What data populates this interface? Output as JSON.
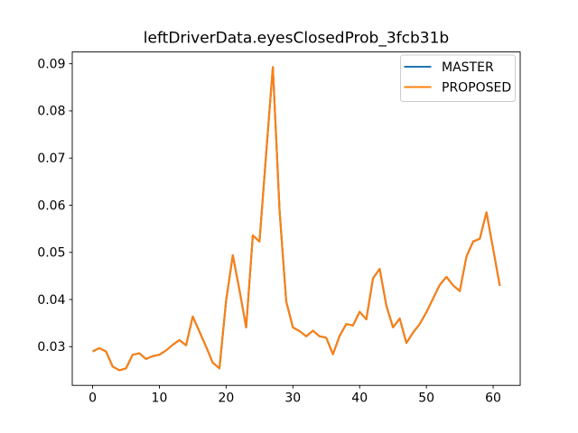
{
  "chart_data": {
    "type": "line",
    "title": "leftDriverData.eyesClosedProb_3fcb31b",
    "xlabel": "",
    "ylabel": "",
    "grid": false,
    "legend_position": "upper right",
    "xlim": [
      -3.05,
      64.05
    ],
    "ylim": [
      0.0218,
      0.0925
    ],
    "xticks": [
      0,
      10,
      20,
      30,
      40,
      50,
      60
    ],
    "yticks": [
      0.03,
      0.04,
      0.05,
      0.06,
      0.07,
      0.08,
      0.09
    ],
    "x": [
      0,
      1,
      2,
      3,
      4,
      5,
      6,
      7,
      8,
      9,
      10,
      11,
      12,
      13,
      14,
      15,
      16,
      17,
      18,
      19,
      20,
      21,
      22,
      23,
      24,
      25,
      26,
      27,
      28,
      29,
      30,
      31,
      32,
      33,
      34,
      35,
      36,
      37,
      38,
      39,
      40,
      41,
      42,
      43,
      44,
      45,
      46,
      47,
      48,
      49,
      50,
      51,
      52,
      53,
      54,
      55,
      56,
      57,
      58,
      59,
      60,
      61
    ],
    "series": [
      {
        "name": "MASTER",
        "color": "#1f77b4",
        "values": [
          0.029,
          0.0297,
          0.029,
          0.0258,
          0.025,
          0.0254,
          0.0283,
          0.0286,
          0.0274,
          0.028,
          0.0283,
          0.0292,
          0.0304,
          0.0314,
          0.0303,
          0.0364,
          0.0332,
          0.03,
          0.0266,
          0.0254,
          0.0398,
          0.0494,
          0.042,
          0.0341,
          0.0536,
          0.0523,
          0.071,
          0.0893,
          0.059,
          0.0396,
          0.0341,
          0.0333,
          0.0322,
          0.0334,
          0.0322,
          0.0319,
          0.0284,
          0.0323,
          0.0348,
          0.0345,
          0.0374,
          0.0358,
          0.0445,
          0.0465,
          0.0387,
          0.0341,
          0.036,
          0.0308,
          0.033,
          0.0348,
          0.0373,
          0.0402,
          0.0431,
          0.0448,
          0.043,
          0.0418,
          0.0491,
          0.0523,
          0.0529,
          0.0585,
          0.0507,
          0.0429
        ]
      },
      {
        "name": "PROPOSED",
        "color": "#ff7f0e",
        "values": [
          0.029,
          0.0297,
          0.029,
          0.0258,
          0.025,
          0.0254,
          0.0283,
          0.0286,
          0.0274,
          0.028,
          0.0283,
          0.0292,
          0.0304,
          0.0314,
          0.0303,
          0.0364,
          0.0332,
          0.03,
          0.0266,
          0.0254,
          0.0398,
          0.0494,
          0.042,
          0.0341,
          0.0536,
          0.0523,
          0.071,
          0.0893,
          0.059,
          0.0396,
          0.0341,
          0.0333,
          0.0322,
          0.0334,
          0.0322,
          0.0319,
          0.0284,
          0.0323,
          0.0348,
          0.0345,
          0.0374,
          0.0358,
          0.0445,
          0.0465,
          0.0387,
          0.0341,
          0.036,
          0.0308,
          0.033,
          0.0348,
          0.0373,
          0.0402,
          0.0431,
          0.0448,
          0.043,
          0.0418,
          0.0491,
          0.0523,
          0.0529,
          0.0585,
          0.0507,
          0.0429
        ]
      }
    ],
    "note_lines_overlap": "PROPOSED drawn over MASTER; curves are identical so only the orange line is visible"
  }
}
